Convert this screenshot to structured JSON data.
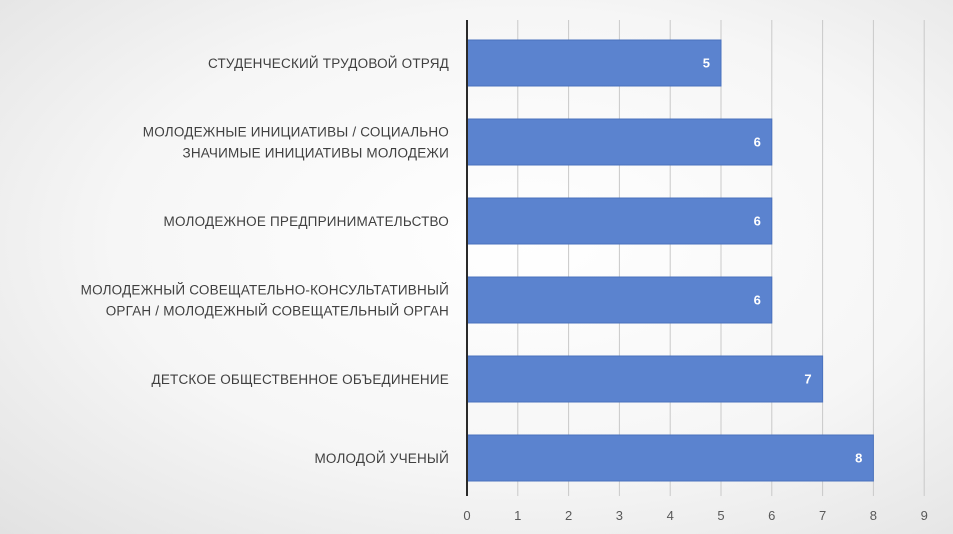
{
  "chart_data": {
    "type": "bar",
    "orientation": "horizontal",
    "categories": [
      "СТУДЕНЧЕСКИЙ ТРУДОВОЙ ОТРЯД",
      "МОЛОДЕЖНЫЕ ИНИЦИАТИВЫ / СОЦИАЛЬНО ЗНАЧИМЫЕ ИНИЦИАТИВЫ МОЛОДЕЖИ",
      "МОЛОДЕЖНОЕ ПРЕДПРИНИМАТЕЛЬСТВО",
      "МОЛОДЕЖНЫЙ СОВЕЩАТЕЛЬНО-КОНСУЛЬТАТИВНЫЙ ОРГАН / МОЛОДЕЖНЫЙ СОВЕЩАТЕЛЬНЫЙ ОРГАН",
      "ДЕТСКОЕ ОБЩЕСТВЕННОЕ ОБЪЕДИНЕНИЕ",
      "МОЛОДОЙ УЧЕНЫЙ"
    ],
    "category_lines": [
      [
        "СТУДЕНЧЕСКИЙ ТРУДОВОЙ ОТРЯД"
      ],
      [
        "МОЛОДЕЖНЫЕ ИНИЦИАТИВЫ / СОЦИАЛЬНО",
        "ЗНАЧИМЫЕ ИНИЦИАТИВЫ МОЛОДЕЖИ"
      ],
      [
        "МОЛОДЕЖНОЕ ПРЕДПРИНИМАТЕЛЬСТВО"
      ],
      [
        "МОЛОДЕЖНЫЙ СОВЕЩАТЕЛЬНО-КОНСУЛЬТАТИВНЫЙ",
        "ОРГАН / МОЛОДЕЖНЫЙ СОВЕЩАТЕЛЬНЫЙ ОРГАН"
      ],
      [
        "ДЕТСКОЕ ОБЩЕСТВЕННОЕ ОБЪЕДИНЕНИЕ"
      ],
      [
        "МОЛОДОЙ УЧЕНЫЙ"
      ]
    ],
    "values": [
      5,
      6,
      6,
      6,
      7,
      8
    ],
    "data_labels": [
      "5",
      "6",
      "6",
      "6",
      "7",
      "8"
    ],
    "xlim": [
      0,
      9
    ],
    "x_ticks": [
      "0",
      "1",
      "2",
      "3",
      "4",
      "5",
      "6",
      "7",
      "8",
      "9"
    ],
    "grid": true,
    "legend": "none",
    "title": "",
    "xlabel": "",
    "ylabel": "",
    "colors": {
      "bar": "#5b83cf",
      "bar_border": "#4a72be",
      "grid": "#c9c9c9",
      "axis": "#2a2a2a"
    }
  }
}
